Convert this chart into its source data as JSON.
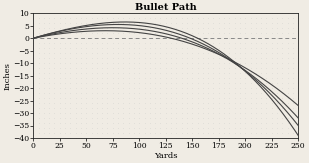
{
  "title": "Bullet Path",
  "xlabel": "Yards",
  "ylabel": "Inches",
  "xlim": [
    0,
    250
  ],
  "ylim": [
    -40,
    10
  ],
  "yticks": [
    10,
    5,
    0,
    -5,
    -10,
    -15,
    -20,
    -25,
    -30,
    -35,
    -40
  ],
  "xticks": [
    0,
    25,
    50,
    75,
    100,
    125,
    150,
    175,
    200,
    225,
    250
  ],
  "curves_params": [
    [
      85,
      6.5,
      155,
      -39
    ],
    [
      80,
      5.5,
      148,
      -35
    ],
    [
      75,
      4.2,
      140,
      -32
    ],
    [
      68,
      3.0,
      130,
      -27
    ]
  ],
  "curve_color": "#444444",
  "dash_color": "#888888",
  "background_color": "#f0ece4",
  "dot_grid_color": "#bbbbbb",
  "title_fontsize": 7,
  "axis_label_fontsize": 6,
  "tick_fontsize": 5.5
}
